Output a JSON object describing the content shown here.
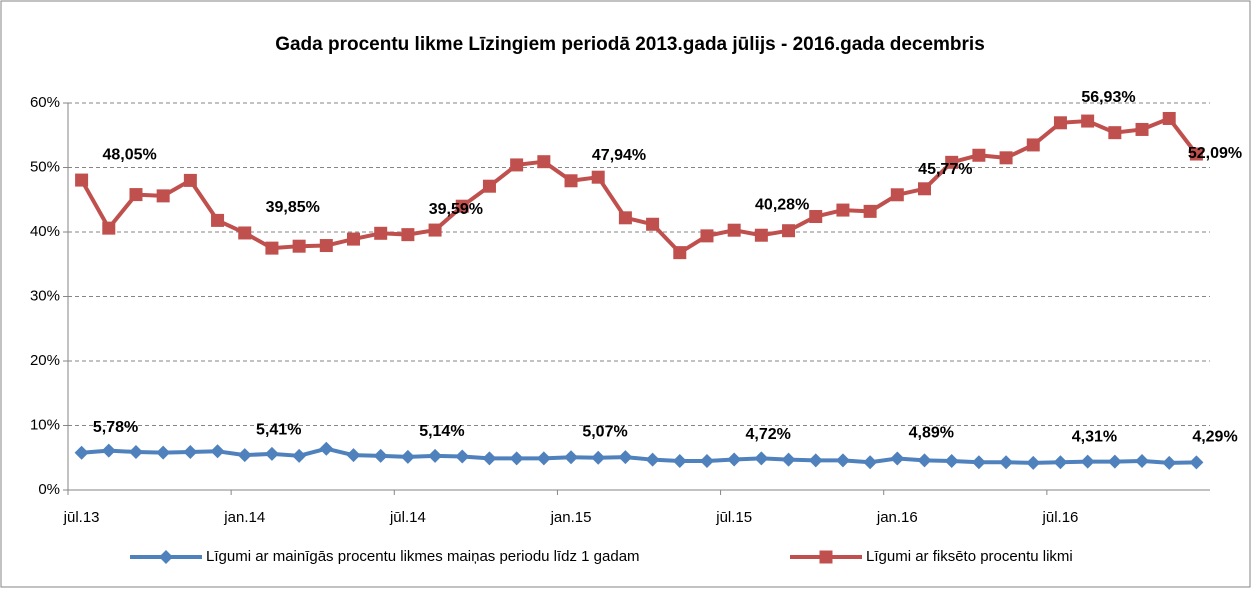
{
  "chart_data": {
    "type": "line",
    "title": "Gada procentu likme Līzingiem periodā 2013.gada jūlijs - 2016.gada decembris",
    "categories": [
      "jūl.13",
      null,
      null,
      null,
      null,
      null,
      "jan.14",
      null,
      null,
      null,
      null,
      null,
      "jūl.14",
      null,
      null,
      null,
      null,
      null,
      "jan.15",
      null,
      null,
      null,
      null,
      null,
      "jūl.15",
      null,
      null,
      null,
      null,
      null,
      "jan.16",
      null,
      null,
      null,
      null,
      null,
      "jūl.16",
      null,
      null,
      null,
      null,
      null
    ],
    "series": [
      {
        "name": "Līgumi ar mainīgās procentu likmes maiņas periodu līdz 1 gadam",
        "color": "#4f81bd",
        "marker": "diamond",
        "values": [
          5.78,
          6.1,
          5.9,
          5.8,
          5.9,
          6.0,
          5.41,
          5.6,
          5.3,
          6.4,
          5.4,
          5.3,
          5.14,
          5.3,
          5.2,
          4.9,
          4.9,
          4.9,
          5.07,
          5.0,
          5.1,
          4.7,
          4.5,
          4.5,
          4.72,
          4.9,
          4.7,
          4.6,
          4.6,
          4.3,
          4.89,
          4.6,
          4.5,
          4.3,
          4.3,
          4.2,
          4.31,
          4.4,
          4.4,
          4.5,
          4.2,
          4.29
        ],
        "value_labels": [
          "5,78%",
          null,
          null,
          null,
          null,
          null,
          "5,41%",
          null,
          null,
          null,
          null,
          null,
          "5,14%",
          null,
          null,
          null,
          null,
          null,
          "5,07%",
          null,
          null,
          null,
          null,
          null,
          "4,72%",
          null,
          null,
          null,
          null,
          null,
          "4,89%",
          null,
          null,
          null,
          null,
          null,
          "4,31%",
          null,
          null,
          null,
          null,
          "4,29%"
        ]
      },
      {
        "name": "Līgumi ar fiksēto procentu likmi",
        "color": "#c0504d",
        "marker": "square",
        "values": [
          48.05,
          40.6,
          45.8,
          45.6,
          48.0,
          41.8,
          39.85,
          37.5,
          37.8,
          37.9,
          38.9,
          39.8,
          39.59,
          40.3,
          44.0,
          47.1,
          50.4,
          50.9,
          47.94,
          48.5,
          42.2,
          41.2,
          36.8,
          39.4,
          40.28,
          39.5,
          40.2,
          42.4,
          43.4,
          43.2,
          45.77,
          46.7,
          50.8,
          51.9,
          51.5,
          53.5,
          56.93,
          57.2,
          55.4,
          55.9,
          57.6,
          52.09
        ],
        "value_labels": [
          "48,05%",
          null,
          null,
          null,
          null,
          null,
          "39,85%",
          null,
          null,
          null,
          null,
          null,
          "39,59%",
          null,
          null,
          null,
          null,
          null,
          "47,94%",
          null,
          null,
          null,
          null,
          null,
          "40,28%",
          null,
          null,
          null,
          null,
          null,
          "45,77%",
          null,
          null,
          null,
          null,
          null,
          "56,93%",
          null,
          null,
          null,
          null,
          "52,09%"
        ]
      }
    ],
    "ylim": [
      0,
      60
    ],
    "yticks": [
      {
        "value": 0,
        "label": "0%"
      },
      {
        "value": 10,
        "label": "10%"
      },
      {
        "value": 20,
        "label": "20%"
      },
      {
        "value": 30,
        "label": "30%"
      },
      {
        "value": 40,
        "label": "40%"
      },
      {
        "value": 50,
        "label": "50%"
      },
      {
        "value": 60,
        "label": "60%"
      }
    ],
    "grid": true,
    "legend": "bottom"
  }
}
